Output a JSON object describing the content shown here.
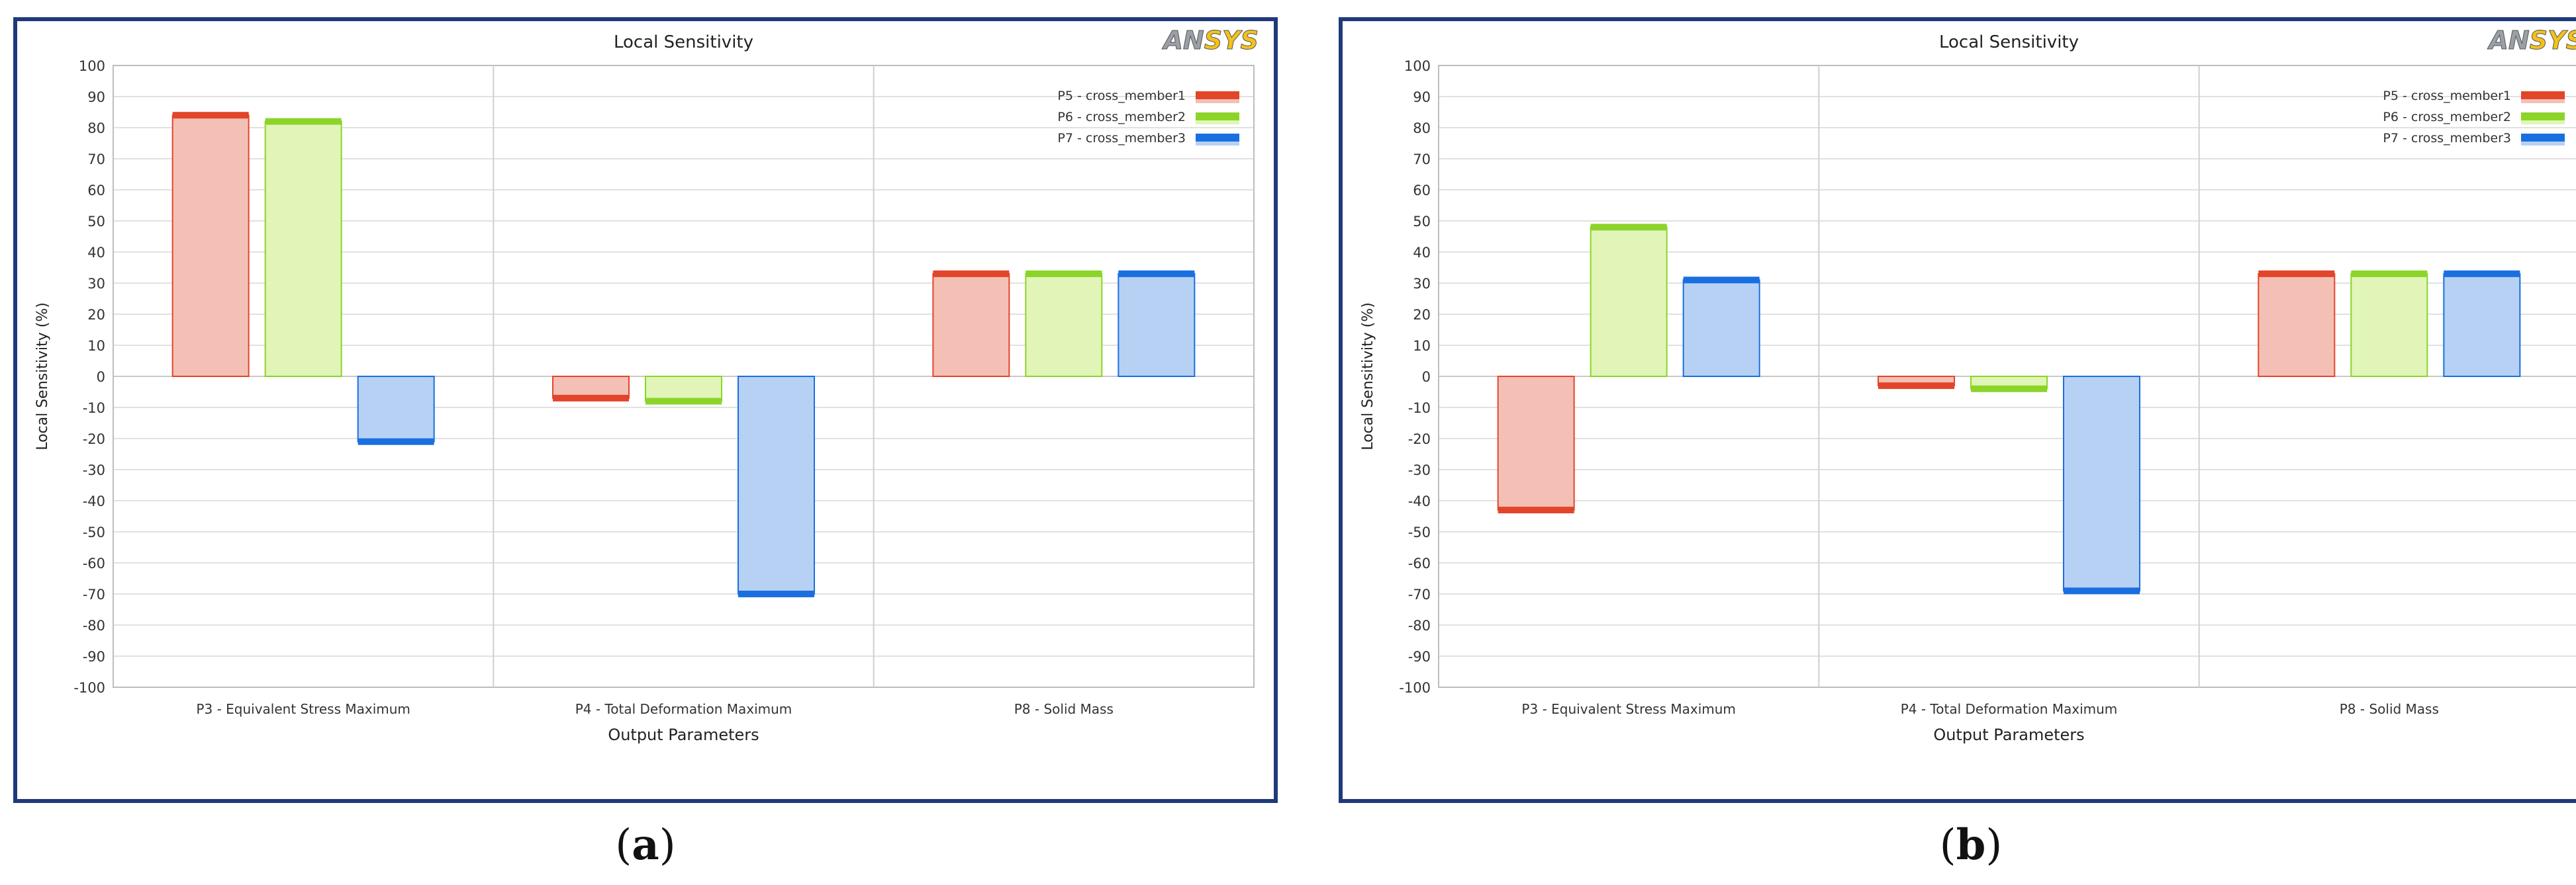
{
  "colors": {
    "series": [
      "#e2452a",
      "#8cd42a",
      "#1a6fe0"
    ],
    "series_fill": [
      "#f4c0b6",
      "#e0f5b7",
      "#b7d1f4"
    ],
    "frame": "#1f3a7a",
    "logo_ans": "#9aa0a6",
    "logo_ys": "#f3c21a"
  },
  "logo": {
    "left": "AN",
    "right": "SYS"
  },
  "chart_data": [
    {
      "panel": "a",
      "caption_letter": "a",
      "type": "bar",
      "title": "Local Sensitivity",
      "xlabel": "Output Parameters",
      "ylabel": "Local Sensitivity (%)",
      "ylim": [
        -100,
        100
      ],
      "ytick_step": 10,
      "grid": true,
      "legend_position": "top-right",
      "categories": [
        "P3 - Equivalent Stress Maximum",
        "P4 - Total Deformation Maximum",
        "P8 - Solid Mass"
      ],
      "series": [
        {
          "name": "P5 - cross_member1",
          "values": [
            84,
            -7,
            33
          ]
        },
        {
          "name": "P6 - cross_member2",
          "values": [
            82,
            -8,
            33
          ]
        },
        {
          "name": "P7 - cross_member3",
          "values": [
            -21,
            -70,
            33
          ]
        }
      ]
    },
    {
      "panel": "b",
      "caption_letter": "b",
      "type": "bar",
      "title": "Local Sensitivity",
      "xlabel": "Output Parameters",
      "ylabel": "Local Sensitivity (%)",
      "ylim": [
        -100,
        100
      ],
      "ytick_step": 10,
      "grid": true,
      "legend_position": "top-right",
      "categories": [
        "P3 - Equivalent Stress Maximum",
        "P4 - Total Deformation Maximum",
        "P8 - Solid Mass"
      ],
      "series": [
        {
          "name": "P5 - cross_member1",
          "values": [
            -43,
            -3,
            33
          ]
        },
        {
          "name": "P6 - cross_member2",
          "values": [
            48,
            -4,
            33
          ]
        },
        {
          "name": "P7 - cross_member3",
          "values": [
            31,
            -69,
            33
          ]
        }
      ]
    }
  ]
}
